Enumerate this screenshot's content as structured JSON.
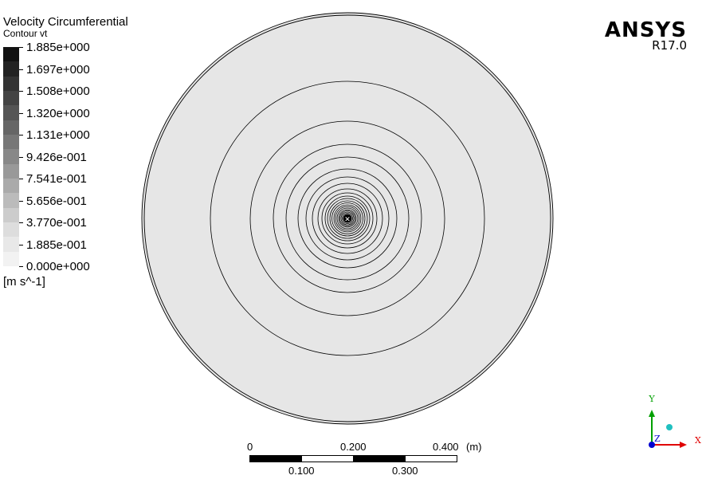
{
  "legend": {
    "title": "Velocity Circumferential",
    "subtitle": "Contour vt",
    "units": "[m s^-1]",
    "labels": [
      "1.885e+000",
      "1.697e+000",
      "1.508e+000",
      "1.320e+000",
      "1.131e+000",
      "9.426e-001",
      "7.541e-001",
      "5.656e-001",
      "3.770e-001",
      "1.885e-001",
      "0.000e+000"
    ],
    "colors": [
      "#111111",
      "#222222",
      "#333333",
      "#444444",
      "#555555",
      "#666666",
      "#777777",
      "#888888",
      "#999999",
      "#aaaaaa",
      "#bbbbbb",
      "#cccccc",
      "#dddddd",
      "#e8e8e8",
      "#f2f2f2"
    ]
  },
  "brand": {
    "name": "ANSYS",
    "version": "R17.0"
  },
  "scale": {
    "top_labels": [
      "0",
      "0.200",
      "0.400"
    ],
    "unit": "(m)",
    "bottom_labels": [
      "0.100",
      "0.300"
    ]
  },
  "triad": {
    "x_label": "X",
    "y_label": "Y",
    "z_label": "Z",
    "x_color": "#e00000",
    "y_color": "#00a000",
    "z_color": "#0000d0"
  },
  "contour": {
    "domain_color": "#e6e6e6",
    "center_color": "#000000"
  }
}
